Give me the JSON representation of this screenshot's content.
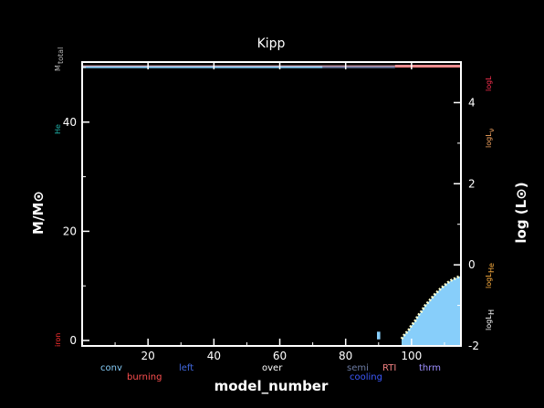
{
  "chart_data": {
    "type": "area",
    "title": "Kipp",
    "xlabel": "model_number",
    "ylabel_left": "M/M⊙",
    "ylabel_right": "log (L⊙)",
    "xlim": [
      0,
      115
    ],
    "ylim_left": [
      -1,
      51
    ],
    "ylim_right": [
      -2,
      5
    ],
    "x_ticks": [
      20,
      40,
      60,
      80,
      100
    ],
    "y_left_ticks": [
      0,
      20,
      40
    ],
    "y_right_ticks": [
      -2,
      0,
      2,
      4
    ],
    "left_labels": {
      "mtotal": "M",
      "mtotal_sub": "total",
      "he": "He",
      "iron": "iron"
    },
    "right_labels": {
      "logL": "logL",
      "logLnu": "logL",
      "logLnu_sub": "ν",
      "logLHe": "logL",
      "logLHe_sub": "He",
      "logLH": "logL",
      "logLH_sub": "H"
    },
    "legend_row1": [
      {
        "text": "conv",
        "color": "#87CEFA"
      },
      {
        "text": "left",
        "color": "#4169E1"
      },
      {
        "text": "over",
        "color": "#FFFFFF"
      },
      {
        "text": "semi",
        "color": "#6C7BA3"
      },
      {
        "text": "RTI",
        "color": "#F08080"
      },
      {
        "text": "thrm",
        "color": "#9D8FFF"
      }
    ],
    "legend_row2": [
      {
        "text": "burning",
        "color": "#FF5050"
      },
      {
        "text": "cooling",
        "color": "#3C5AFF"
      }
    ],
    "colors": {
      "convection": "#87CEFA",
      "semiconvection": "#6C7BA3",
      "rti": "#F08080",
      "surface": "#E8A0A8",
      "burning_edge": "#FFFFCC",
      "axes": "#FFFFFF"
    },
    "series": [
      {
        "name": "conv",
        "color": "#87CEFA",
        "x": [
          97,
          98,
          99,
          100,
          101,
          102,
          103,
          104,
          105,
          106,
          107,
          108,
          109,
          110,
          111,
          112,
          113,
          114,
          115
        ],
        "top": [
          0.3,
          1.2,
          1.8,
          2.8,
          3.5,
          4.6,
          5.3,
          6.3,
          7.0,
          7.7,
          8.4,
          9.0,
          9.6,
          10.1,
          10.6,
          11.0,
          11.3,
          11.6,
          11.8
        ]
      },
      {
        "name": "conv",
        "color": "#87CEFA",
        "x": [
          0,
          73
        ],
        "top": [
          50.3,
          50.3
        ],
        "bottom": [
          49.9,
          49.9
        ]
      },
      {
        "name": "semi",
        "color": "#6C7BA3",
        "x": [
          73,
          95
        ],
        "top": [
          50.3,
          50.3
        ],
        "bottom": [
          49.9,
          49.9
        ]
      },
      {
        "name": "RTI",
        "color": "#F08080",
        "x": [
          95,
          115
        ],
        "top": [
          50.5,
          50.5
        ],
        "bottom": [
          50.0,
          50.0
        ]
      },
      {
        "name": "conv",
        "color": "#87CEFA",
        "x": [
          89.5,
          90.5
        ],
        "top": [
          1.6,
          1.6
        ],
        "bottom": [
          0.2,
          0.2
        ]
      }
    ],
    "grid": false
  }
}
